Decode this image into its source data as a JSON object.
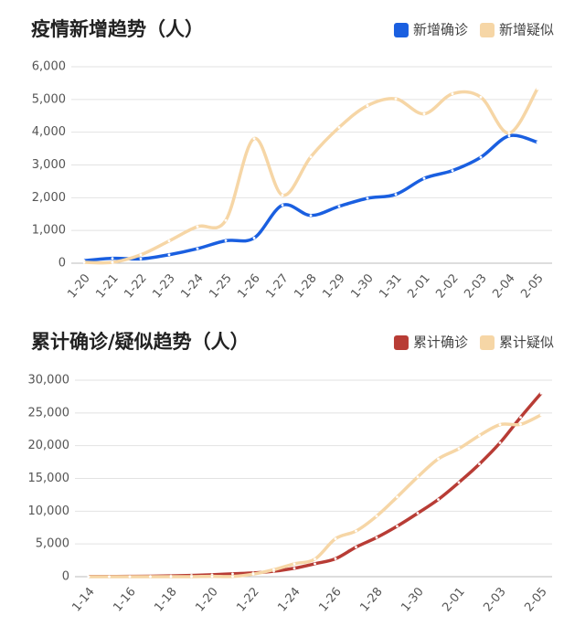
{
  "chart_data": [
    {
      "type": "line",
      "title": "疫情新增趋势（人）",
      "categories": [
        "1-20",
        "1-21",
        "1-22",
        "1-23",
        "1-24",
        "1-25",
        "1-26",
        "1-27",
        "1-28",
        "1-29",
        "1-30",
        "1-31",
        "2-01",
        "2-02",
        "2-03",
        "2-04",
        "2-05"
      ],
      "series": [
        {
          "name": "新增确诊",
          "color": "#1a5fe0",
          "values": [
            77,
            149,
            131,
            259,
            444,
            688,
            769,
            1771,
            1459,
            1737,
            1982,
            2102,
            2590,
            2829,
            3235,
            3887,
            3694
          ]
        },
        {
          "name": "新增疑似",
          "color": "#f6d6a6",
          "values": [
            27,
            26,
            257,
            680,
            1118,
            1309,
            3806,
            2077,
            3248,
            4148,
            4812,
            5019,
            4562,
            5173,
            5072,
            3971,
            5328
          ]
        }
      ],
      "ylim": [
        0,
        6000
      ],
      "yticks": [
        0,
        {
          "value": 1000,
          "label": "1,000"
        },
        {
          "value": 2000,
          "label": "2,000"
        },
        {
          "value": 3000,
          "label": "3,000"
        },
        {
          "value": 4000,
          "label": "4,000"
        },
        {
          "value": 5000,
          "label": "5,000"
        },
        {
          "value": 6000,
          "label": "6,000"
        }
      ],
      "grid": true,
      "legend": "top-right"
    },
    {
      "type": "line",
      "title": "累计确诊/疑似趋势（人）",
      "categories": [
        "1-14",
        null,
        "1-16",
        null,
        "1-18",
        null,
        "1-20",
        null,
        "1-22",
        null,
        "1-24",
        null,
        "1-26",
        null,
        "1-28",
        null,
        "1-30",
        null,
        "2-01",
        null,
        "2-03",
        null,
        "2-05"
      ],
      "series": [
        {
          "name": "累计确诊",
          "color": "#b83c35",
          "values": [
            41,
            41,
            45,
            62,
            121,
            198,
            291,
            440,
            571,
            830,
            1287,
            1975,
            2744,
            4515,
            5974,
            7711,
            9692,
            11791,
            14380,
            17205,
            20438,
            24324,
            28018
          ]
        },
        {
          "name": "累计疑似",
          "color": "#f6d6a6",
          "values": [
            0,
            0,
            0,
            0,
            0,
            0,
            54,
            37,
            393,
            1072,
            1965,
            2684,
            5794,
            6973,
            9239,
            12167,
            15238,
            17988,
            19544,
            21558,
            23214,
            23260,
            24702
          ]
        }
      ],
      "ylim": [
        0,
        30000
      ],
      "yticks": [
        0,
        {
          "value": 5000,
          "label": "5,000"
        },
        {
          "value": 10000,
          "label": "10,000"
        },
        {
          "value": 15000,
          "label": "15,000"
        },
        {
          "value": 20000,
          "label": "20,000"
        },
        {
          "value": 25000,
          "label": "25,000"
        },
        {
          "value": 30000,
          "label": "30,000"
        }
      ],
      "grid": true,
      "legend": "top-right"
    }
  ]
}
